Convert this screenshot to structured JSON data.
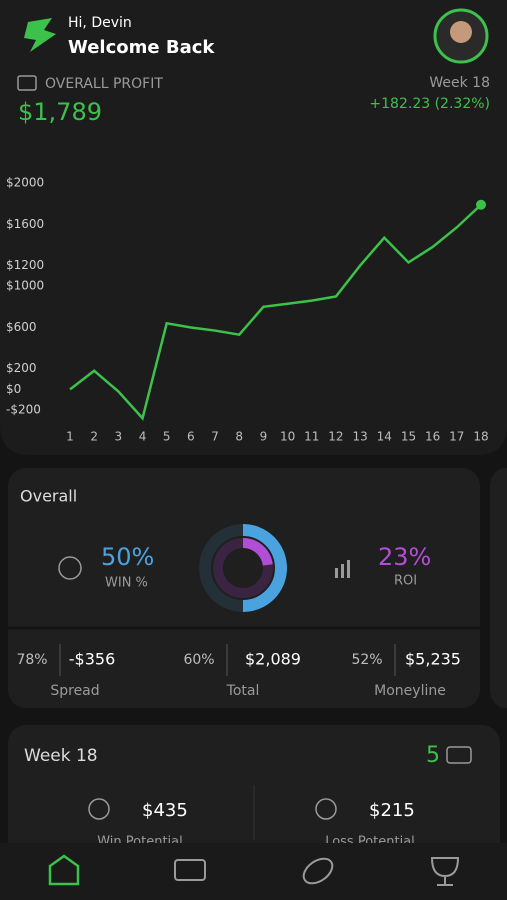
{
  "header": {
    "greeting": "Hi, Devin",
    "title": "Welcome Back"
  },
  "profit": {
    "label": "OVERALL PROFIT",
    "amount": "$1,789",
    "week": "Week 18",
    "change": "+182.23 (2.32%)"
  },
  "chart_data": {
    "type": "line",
    "categories": [
      "1",
      "2",
      "3",
      "4",
      "5",
      "6",
      "7",
      "8",
      "9",
      "10",
      "11",
      "12",
      "13",
      "14",
      "15",
      "16",
      "17",
      "18"
    ],
    "series": [
      {
        "name": "Profit",
        "color": "#3cc24a",
        "values": [
          0,
          180,
          -20,
          -280,
          640,
          600,
          570,
          530,
          800,
          830,
          860,
          900,
          1200,
          1470,
          1230,
          1380,
          1570,
          1789
        ]
      }
    ],
    "ylim": [
      -200,
      2000
    ],
    "yticks": [
      {
        "value": -200,
        "label": "-$200"
      },
      {
        "value": 0,
        "label": "$0"
      },
      {
        "value": 200,
        "label": "$200"
      },
      {
        "value": 600,
        "label": "$600"
      },
      {
        "value": 1000,
        "label": "$1000"
      },
      {
        "value": 1200,
        "label": "$1200"
      },
      {
        "value": 1600,
        "label": "$1600"
      },
      {
        "value": 2000,
        "label": "$2000"
      }
    ]
  },
  "overall": {
    "title": "Overall",
    "win": {
      "value": 50,
      "label": "50%",
      "caption": "WIN %",
      "color": "#4aa3df"
    },
    "roi": {
      "value": 23,
      "label": "23%",
      "caption": "ROI",
      "color": "#b04fd6"
    },
    "stats": [
      {
        "pct": "78%",
        "amount": "-$356",
        "name": "Spread"
      },
      {
        "pct": "60%",
        "amount": "$2,089",
        "name": "Total"
      },
      {
        "pct": "52%",
        "amount": "$5,235",
        "name": "Moneyline"
      }
    ]
  },
  "week": {
    "title": "Week 18",
    "count": "5",
    "win": {
      "amount": "$435",
      "name": "Win Potential"
    },
    "loss": {
      "amount": "$215",
      "name": "Loss Potential"
    }
  }
}
